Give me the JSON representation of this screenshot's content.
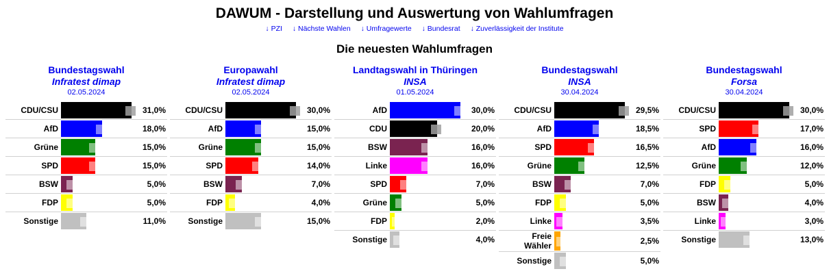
{
  "header": {
    "title": "DAWUM - Darstellung und Auswertung von Wahlumfragen",
    "nav": [
      {
        "label": "↓ PZI"
      },
      {
        "label": "↓ Nächste Wahlen"
      },
      {
        "label": "↓ Umfragewerte"
      },
      {
        "label": "↓ Bundesrat"
      },
      {
        "label": "↓ Zuverlässigkeit der Institute"
      }
    ],
    "section_title": "Die neuesten Wahlumfragen"
  },
  "party_colors": {
    "CDU/CSU": "#000000",
    "CDU": "#000000",
    "AfD": "#0000ff",
    "Grüne": "#008000",
    "SPD": "#ff0000",
    "BSW": "#7a2350",
    "FDP": "#ffff00",
    "Linke": "#ff00ff",
    "Freie Wähler": "#ffa500",
    "Sonstige": "#c0c0c0"
  },
  "chart_data": [
    {
      "type": "bar",
      "title": "Bundestagswahl",
      "institute": "Infratest dimap",
      "date": "02.05.2024",
      "categories": [
        "CDU/CSU",
        "AfD",
        "Grüne",
        "SPD",
        "BSW",
        "FDP",
        "Sonstige"
      ],
      "values": [
        31.0,
        18.0,
        15.0,
        15.0,
        5.0,
        5.0,
        11.0
      ],
      "labels": [
        "31,0%",
        "18,0%",
        "15,0%",
        "15,0%",
        "5,0%",
        "5,0%",
        "11,0%"
      ]
    },
    {
      "type": "bar",
      "title": "Europawahl",
      "institute": "Infratest dimap",
      "date": "02.05.2024",
      "categories": [
        "CDU/CSU",
        "AfD",
        "Grüne",
        "SPD",
        "BSW",
        "FDP",
        "Sonstige"
      ],
      "values": [
        30.0,
        15.0,
        15.0,
        14.0,
        7.0,
        4.0,
        15.0
      ],
      "labels": [
        "30,0%",
        "15,0%",
        "15,0%",
        "14,0%",
        "7,0%",
        "4,0%",
        "15,0%"
      ]
    },
    {
      "type": "bar",
      "title": "Landtagswahl in Thüringen",
      "institute": "INSA",
      "date": "01.05.2024",
      "categories": [
        "AfD",
        "CDU",
        "BSW",
        "Linke",
        "SPD",
        "Grüne",
        "FDP",
        "Sonstige"
      ],
      "values": [
        30.0,
        20.0,
        16.0,
        16.0,
        7.0,
        5.0,
        2.0,
        4.0
      ],
      "labels": [
        "30,0%",
        "20,0%",
        "16,0%",
        "16,0%",
        "7,0%",
        "5,0%",
        "2,0%",
        "4,0%"
      ]
    },
    {
      "type": "bar",
      "title": "Bundestagswahl",
      "institute": "INSA",
      "date": "30.04.2024",
      "categories": [
        "CDU/CSU",
        "AfD",
        "SPD",
        "Grüne",
        "BSW",
        "FDP",
        "Linke",
        "Freie Wähler",
        "Sonstige"
      ],
      "values": [
        29.5,
        18.5,
        16.5,
        12.5,
        7.0,
        5.0,
        3.5,
        2.5,
        5.0
      ],
      "labels": [
        "29,5%",
        "18,5%",
        "16,5%",
        "12,5%",
        "7,0%",
        "5,0%",
        "3,5%",
        "2,5%",
        "5,0%"
      ]
    },
    {
      "type": "bar",
      "title": "Bundestagswahl",
      "institute": "Forsa",
      "date": "30.04.2024",
      "categories": [
        "CDU/CSU",
        "SPD",
        "AfD",
        "Grüne",
        "FDP",
        "BSW",
        "Linke",
        "Sonstige"
      ],
      "values": [
        30.0,
        17.0,
        16.0,
        12.0,
        5.0,
        4.0,
        3.0,
        13.0
      ],
      "labels": [
        "30,0%",
        "17,0%",
        "16,0%",
        "12,0%",
        "5,0%",
        "4,0%",
        "3,0%",
        "13,0%"
      ]
    }
  ]
}
